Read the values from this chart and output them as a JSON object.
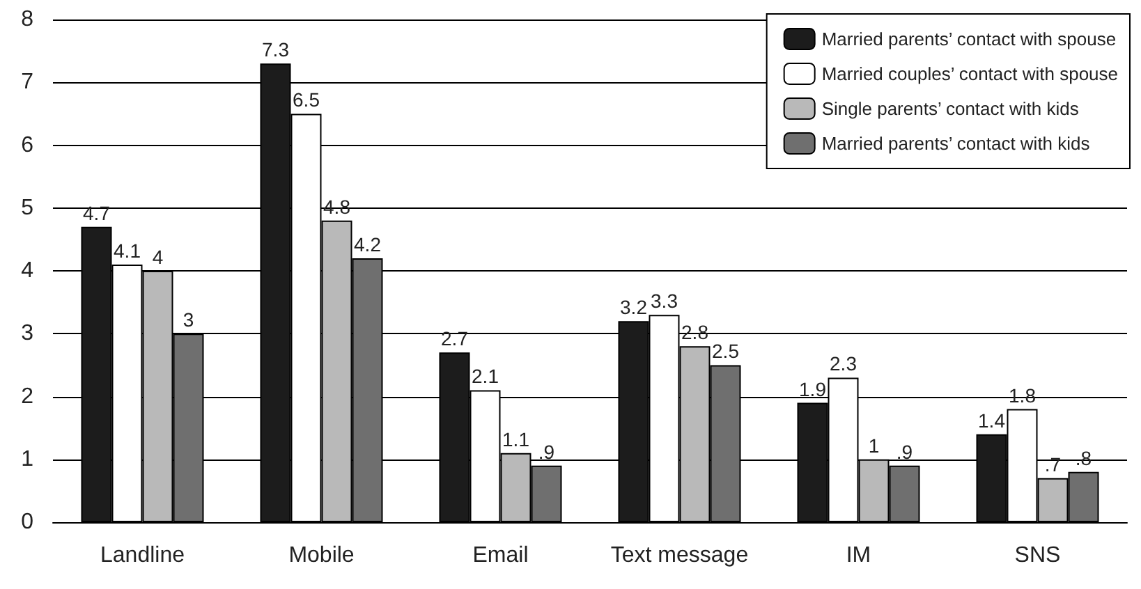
{
  "chart_data": {
    "type": "bar",
    "categories": [
      "Landline",
      "Mobile",
      "Email",
      "Text message",
      "IM",
      "SNS"
    ],
    "series": [
      {
        "name": "Married parents’ contact with spouse",
        "color": "#1c1c1c",
        "values": [
          4.7,
          7.3,
          2.7,
          3.2,
          1.9,
          1.4
        ],
        "value_labels": [
          "4.7",
          "7.3",
          "2.7",
          "3.2",
          "1.9",
          "1.4"
        ]
      },
      {
        "name": "Married couples’ contact with spouse",
        "color": "#ffffff",
        "values": [
          4.1,
          6.5,
          2.1,
          3.3,
          2.3,
          1.8
        ],
        "value_labels": [
          "4.1",
          "6.5",
          "2.1",
          "3.3",
          "2.3",
          "1.8"
        ]
      },
      {
        "name": "Single parents’ contact with kids",
        "color": "#b9b9b9",
        "values": [
          4,
          4.8,
          1.1,
          2.8,
          1,
          0.7
        ],
        "value_labels": [
          "4",
          "4.8",
          "1.1",
          "2.8",
          "1",
          ".7"
        ]
      },
      {
        "name": "Married parents’ contact with kids",
        "color": "#6f6f6f",
        "values": [
          3,
          4.2,
          0.9,
          2.5,
          0.9,
          0.8
        ],
        "value_labels": [
          "3",
          "4.2",
          ".9",
          "2.5",
          ".9",
          ".8"
        ]
      }
    ],
    "ylim": [
      0,
      8
    ],
    "yticks": [
      0,
      1,
      2,
      3,
      4,
      5,
      6,
      7,
      8
    ],
    "grid": "y",
    "legend": "top right"
  }
}
